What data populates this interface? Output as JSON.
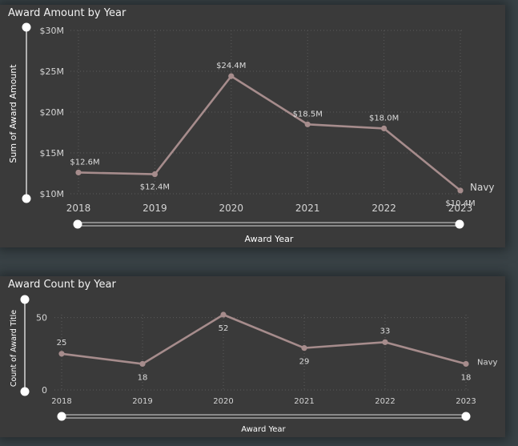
{
  "chart_data": [
    {
      "type": "line",
      "title": "Award Amount by Year",
      "xlabel": "Award Year",
      "ylabel": "Sum of Award Amount",
      "x": [
        "2018",
        "2019",
        "2020",
        "2021",
        "2022",
        "2023"
      ],
      "yticks": [
        "$10M",
        "$15M",
        "$20M",
        "$25M",
        "$30M"
      ],
      "ylim": [
        10,
        30
      ],
      "grid": true,
      "series": [
        {
          "name": "Navy",
          "values": [
            12.6,
            12.4,
            24.4,
            18.5,
            18.0,
            10.4
          ],
          "labels": [
            "$12.6M",
            "$12.4M",
            "$24.4M",
            "$18.5M",
            "$18.0M",
            "$10.4M"
          ]
        }
      ]
    },
    {
      "type": "line",
      "title": "Award Count by Year",
      "xlabel": "Award Year",
      "ylabel": "Count of Award Title",
      "x": [
        "2018",
        "2019",
        "2020",
        "2021",
        "2022",
        "2023"
      ],
      "yticks": [
        "0",
        "50"
      ],
      "ylim": [
        0,
        52
      ],
      "grid": true,
      "series": [
        {
          "name": "Navy",
          "values": [
            25,
            18,
            52,
            29,
            33,
            18
          ],
          "labels": [
            "25",
            "18",
            "52",
            "29",
            "33",
            "18"
          ]
        }
      ]
    }
  ],
  "colors": {
    "line": "#a68c8c",
    "background": "#3a3a3a",
    "page": "#3a4347"
  }
}
